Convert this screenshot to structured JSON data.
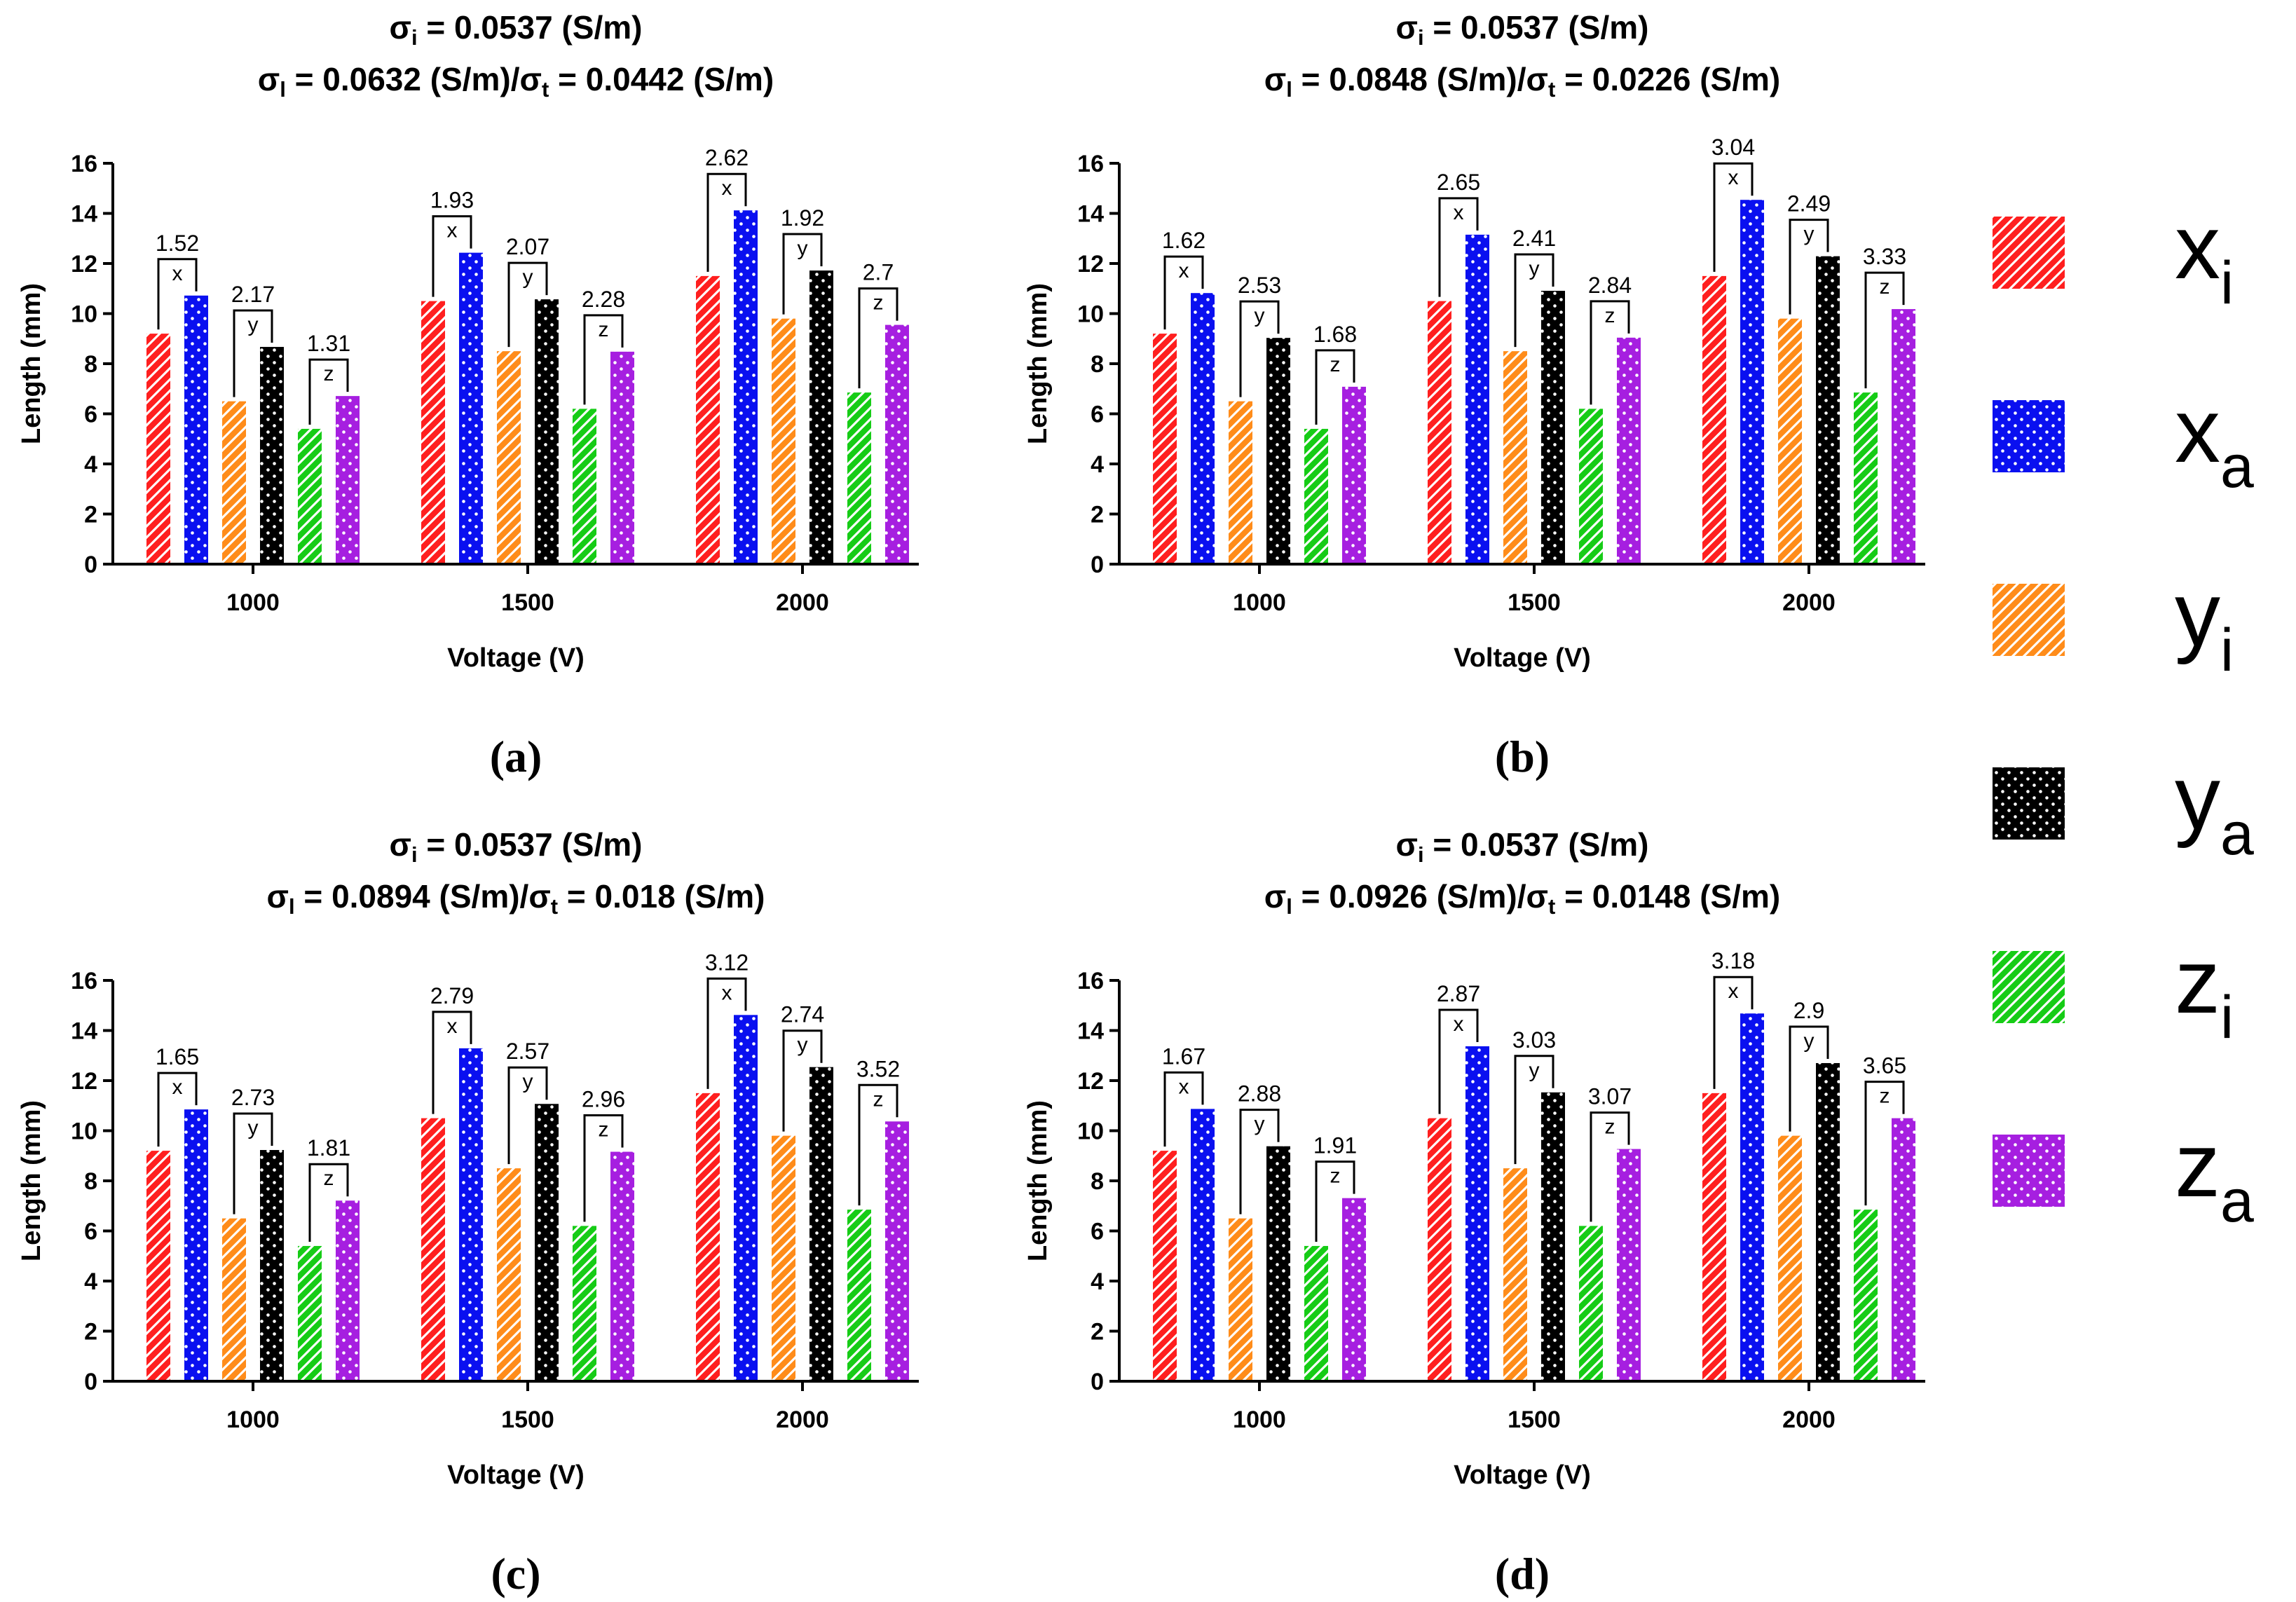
{
  "legend": [
    {
      "key": "xi",
      "base": "x",
      "sub": "i",
      "color": "#ff1f1f",
      "pattern": "hatch"
    },
    {
      "key": "xa",
      "base": "x",
      "sub": "a",
      "color": "#0a10f0",
      "pattern": "dots"
    },
    {
      "key": "yi",
      "base": "y",
      "sub": "i",
      "color": "#ff8c1a",
      "pattern": "hatch"
    },
    {
      "key": "ya",
      "base": "y",
      "sub": "a",
      "color": "#000000",
      "pattern": "dots"
    },
    {
      "key": "zi",
      "base": "z",
      "sub": "i",
      "color": "#16cc16",
      "pattern": "hatch"
    },
    {
      "key": "za",
      "base": "z",
      "sub": "a",
      "color": "#a61fe0",
      "pattern": "dots"
    }
  ],
  "chart_data": [
    {
      "type": "bar",
      "panel_label": "(a)",
      "title_line1": {
        "sym": "σ",
        "sub": "i",
        "rest": " = 0.0537 (S/m)"
      },
      "title_line2": {
        "sym1": "σ",
        "sub1": "l",
        "mid": " = 0.0632 (S/m)/",
        "sym2": "σ",
        "sub2": "t",
        "rest": " = 0.0442 (S/m)"
      },
      "xlabel": "Voltage (V)",
      "ylabel": "Length (mm)",
      "ylim": [
        0,
        16
      ],
      "yticks": [
        0,
        2,
        4,
        6,
        8,
        10,
        12,
        14,
        16
      ],
      "categories": [
        "1000",
        "1500",
        "2000"
      ],
      "series": [
        {
          "name": "xi",
          "values": [
            9.2,
            10.5,
            11.5
          ]
        },
        {
          "name": "xa",
          "values": [
            10.72,
            12.43,
            14.12
          ]
        },
        {
          "name": "yi",
          "values": [
            6.5,
            8.5,
            9.8
          ]
        },
        {
          "name": "ya",
          "values": [
            8.67,
            10.57,
            11.72
          ]
        },
        {
          "name": "zi",
          "values": [
            5.4,
            6.2,
            6.85
          ]
        },
        {
          "name": "za",
          "values": [
            6.71,
            8.48,
            9.55
          ]
        }
      ],
      "differences": [
        {
          "x": [
            "1.52",
            "1.93",
            "2.62"
          ],
          "y": [
            "2.17",
            "2.07",
            "1.92"
          ],
          "z": [
            "1.31",
            "2.28",
            "2.7"
          ]
        }
      ]
    },
    {
      "type": "bar",
      "panel_label": "(b)",
      "title_line1": {
        "sym": "σ",
        "sub": "i",
        "rest": " = 0.0537 (S/m)"
      },
      "title_line2": {
        "sym1": "σ",
        "sub1": "l",
        "mid": " = 0.0848 (S/m)/",
        "sym2": "σ",
        "sub2": "t",
        "rest": " = 0.0226 (S/m)"
      },
      "xlabel": "Voltage (V)",
      "ylabel": "Length (mm)",
      "ylim": [
        0,
        16
      ],
      "yticks": [
        0,
        2,
        4,
        6,
        8,
        10,
        12,
        14,
        16
      ],
      "categories": [
        "1000",
        "1500",
        "2000"
      ],
      "series": [
        {
          "name": "xi",
          "values": [
            9.2,
            10.5,
            11.5
          ]
        },
        {
          "name": "xa",
          "values": [
            10.82,
            13.15,
            14.54
          ]
        },
        {
          "name": "yi",
          "values": [
            6.5,
            8.5,
            9.8
          ]
        },
        {
          "name": "ya",
          "values": [
            9.03,
            10.91,
            12.29
          ]
        },
        {
          "name": "zi",
          "values": [
            5.4,
            6.2,
            6.85
          ]
        },
        {
          "name": "za",
          "values": [
            7.08,
            9.04,
            10.18
          ]
        }
      ],
      "differences": [
        {
          "x": [
            "1.62",
            "2.65",
            "3.04"
          ],
          "y": [
            "2.53",
            "2.41",
            "2.49"
          ],
          "z": [
            "1.68",
            "2.84",
            "3.33"
          ]
        }
      ]
    },
    {
      "type": "bar",
      "panel_label": "(c)",
      "title_line1": {
        "sym": "σ",
        "sub": "i",
        "rest": " = 0.0537 (S/m)"
      },
      "title_line2": {
        "sym1": "σ",
        "sub1": "l",
        "mid": " = 0.0894 (S/m)/",
        "sym2": "σ",
        "sub2": "t",
        "rest": " = 0.018 (S/m)"
      },
      "xlabel": "Voltage (V)",
      "ylabel": "Length (mm)",
      "ylim": [
        0,
        16
      ],
      "yticks": [
        0,
        2,
        4,
        6,
        8,
        10,
        12,
        14,
        16
      ],
      "categories": [
        "1000",
        "1500",
        "2000"
      ],
      "series": [
        {
          "name": "xi",
          "values": [
            9.2,
            10.5,
            11.5
          ]
        },
        {
          "name": "xa",
          "values": [
            10.85,
            13.29,
            14.62
          ]
        },
        {
          "name": "yi",
          "values": [
            6.5,
            8.5,
            9.8
          ]
        },
        {
          "name": "ya",
          "values": [
            9.23,
            11.07,
            12.54
          ]
        },
        {
          "name": "zi",
          "values": [
            5.4,
            6.2,
            6.85
          ]
        },
        {
          "name": "za",
          "values": [
            7.21,
            9.16,
            10.37
          ]
        }
      ],
      "differences": [
        {
          "x": [
            "1.65",
            "2.79",
            "3.12"
          ],
          "y": [
            "2.73",
            "2.57",
            "2.74"
          ],
          "z": [
            "1.81",
            "2.96",
            "3.52"
          ]
        }
      ]
    },
    {
      "type": "bar",
      "panel_label": "(d)",
      "title_line1": {
        "sym": "σ",
        "sub": "i",
        "rest": " = 0.0537 (S/m)"
      },
      "title_line2": {
        "sym1": "σ",
        "sub1": "l",
        "mid": " = 0.0926 (S/m)/",
        "sym2": "σ",
        "sub2": "t",
        "rest": " = 0.0148 (S/m)"
      },
      "xlabel": "Voltage (V)",
      "ylabel": "Length (mm)",
      "ylim": [
        0,
        16
      ],
      "yticks": [
        0,
        2,
        4,
        6,
        8,
        10,
        12,
        14,
        16
      ],
      "categories": [
        "1000",
        "1500",
        "2000"
      ],
      "series": [
        {
          "name": "xi",
          "values": [
            9.2,
            10.5,
            11.5
          ]
        },
        {
          "name": "xa",
          "values": [
            10.87,
            13.37,
            14.68
          ]
        },
        {
          "name": "yi",
          "values": [
            6.5,
            8.5,
            9.8
          ]
        },
        {
          "name": "ya",
          "values": [
            9.38,
            11.53,
            12.7
          ]
        },
        {
          "name": "zi",
          "values": [
            5.4,
            6.2,
            6.85
          ]
        },
        {
          "name": "za",
          "values": [
            7.31,
            9.27,
            10.5
          ]
        }
      ],
      "differences": [
        {
          "x": [
            "1.67",
            "2.87",
            "3.18"
          ],
          "y": [
            "2.88",
            "3.03",
            "2.9"
          ],
          "z": [
            "1.91",
            "3.07",
            "3.65"
          ]
        }
      ]
    }
  ]
}
